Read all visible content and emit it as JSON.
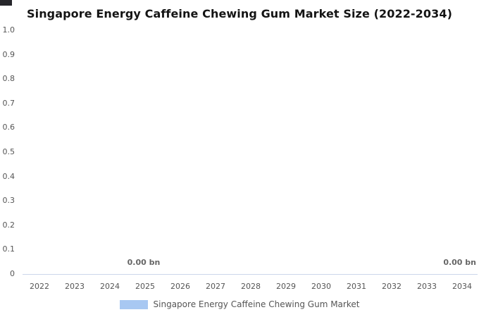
{
  "title": "Singapore Energy Caffeine Chewing Gum Market Size (2022-2034)",
  "chart_data": {
    "type": "bar",
    "title": "Singapore Energy Caffeine Chewing Gum Market Size (2022-2034)",
    "categories": [
      "2022",
      "2023",
      "2024",
      "2025",
      "2026",
      "2027",
      "2028",
      "2029",
      "2030",
      "2031",
      "2032",
      "2033",
      "2034"
    ],
    "series": [
      {
        "name": "Singapore Energy Caffeine Chewing Gum Market",
        "values": [
          0,
          0,
          0,
          0,
          0,
          0,
          0,
          0,
          0,
          0,
          0,
          0,
          0
        ],
        "color": "#a8c8f2"
      }
    ],
    "unit": "bn",
    "y_ticks": [
      "1.0",
      "0.9",
      "0.8",
      "0.7",
      "0.6",
      "0.5",
      "0.4",
      "0.3",
      "0.2",
      "0.1",
      "0"
    ],
    "ylim": [
      0,
      1
    ],
    "xlabel": "",
    "ylabel": "",
    "grid": false,
    "value_labels": [
      {
        "text": "0.00 bn",
        "category": "2025"
      },
      {
        "text": "0.00 bn",
        "category": "2034"
      }
    ],
    "legend": {
      "label": "Singapore Energy Caffeine Chewing Gum Market",
      "color": "#a8c8f2",
      "position": "bottom"
    }
  }
}
